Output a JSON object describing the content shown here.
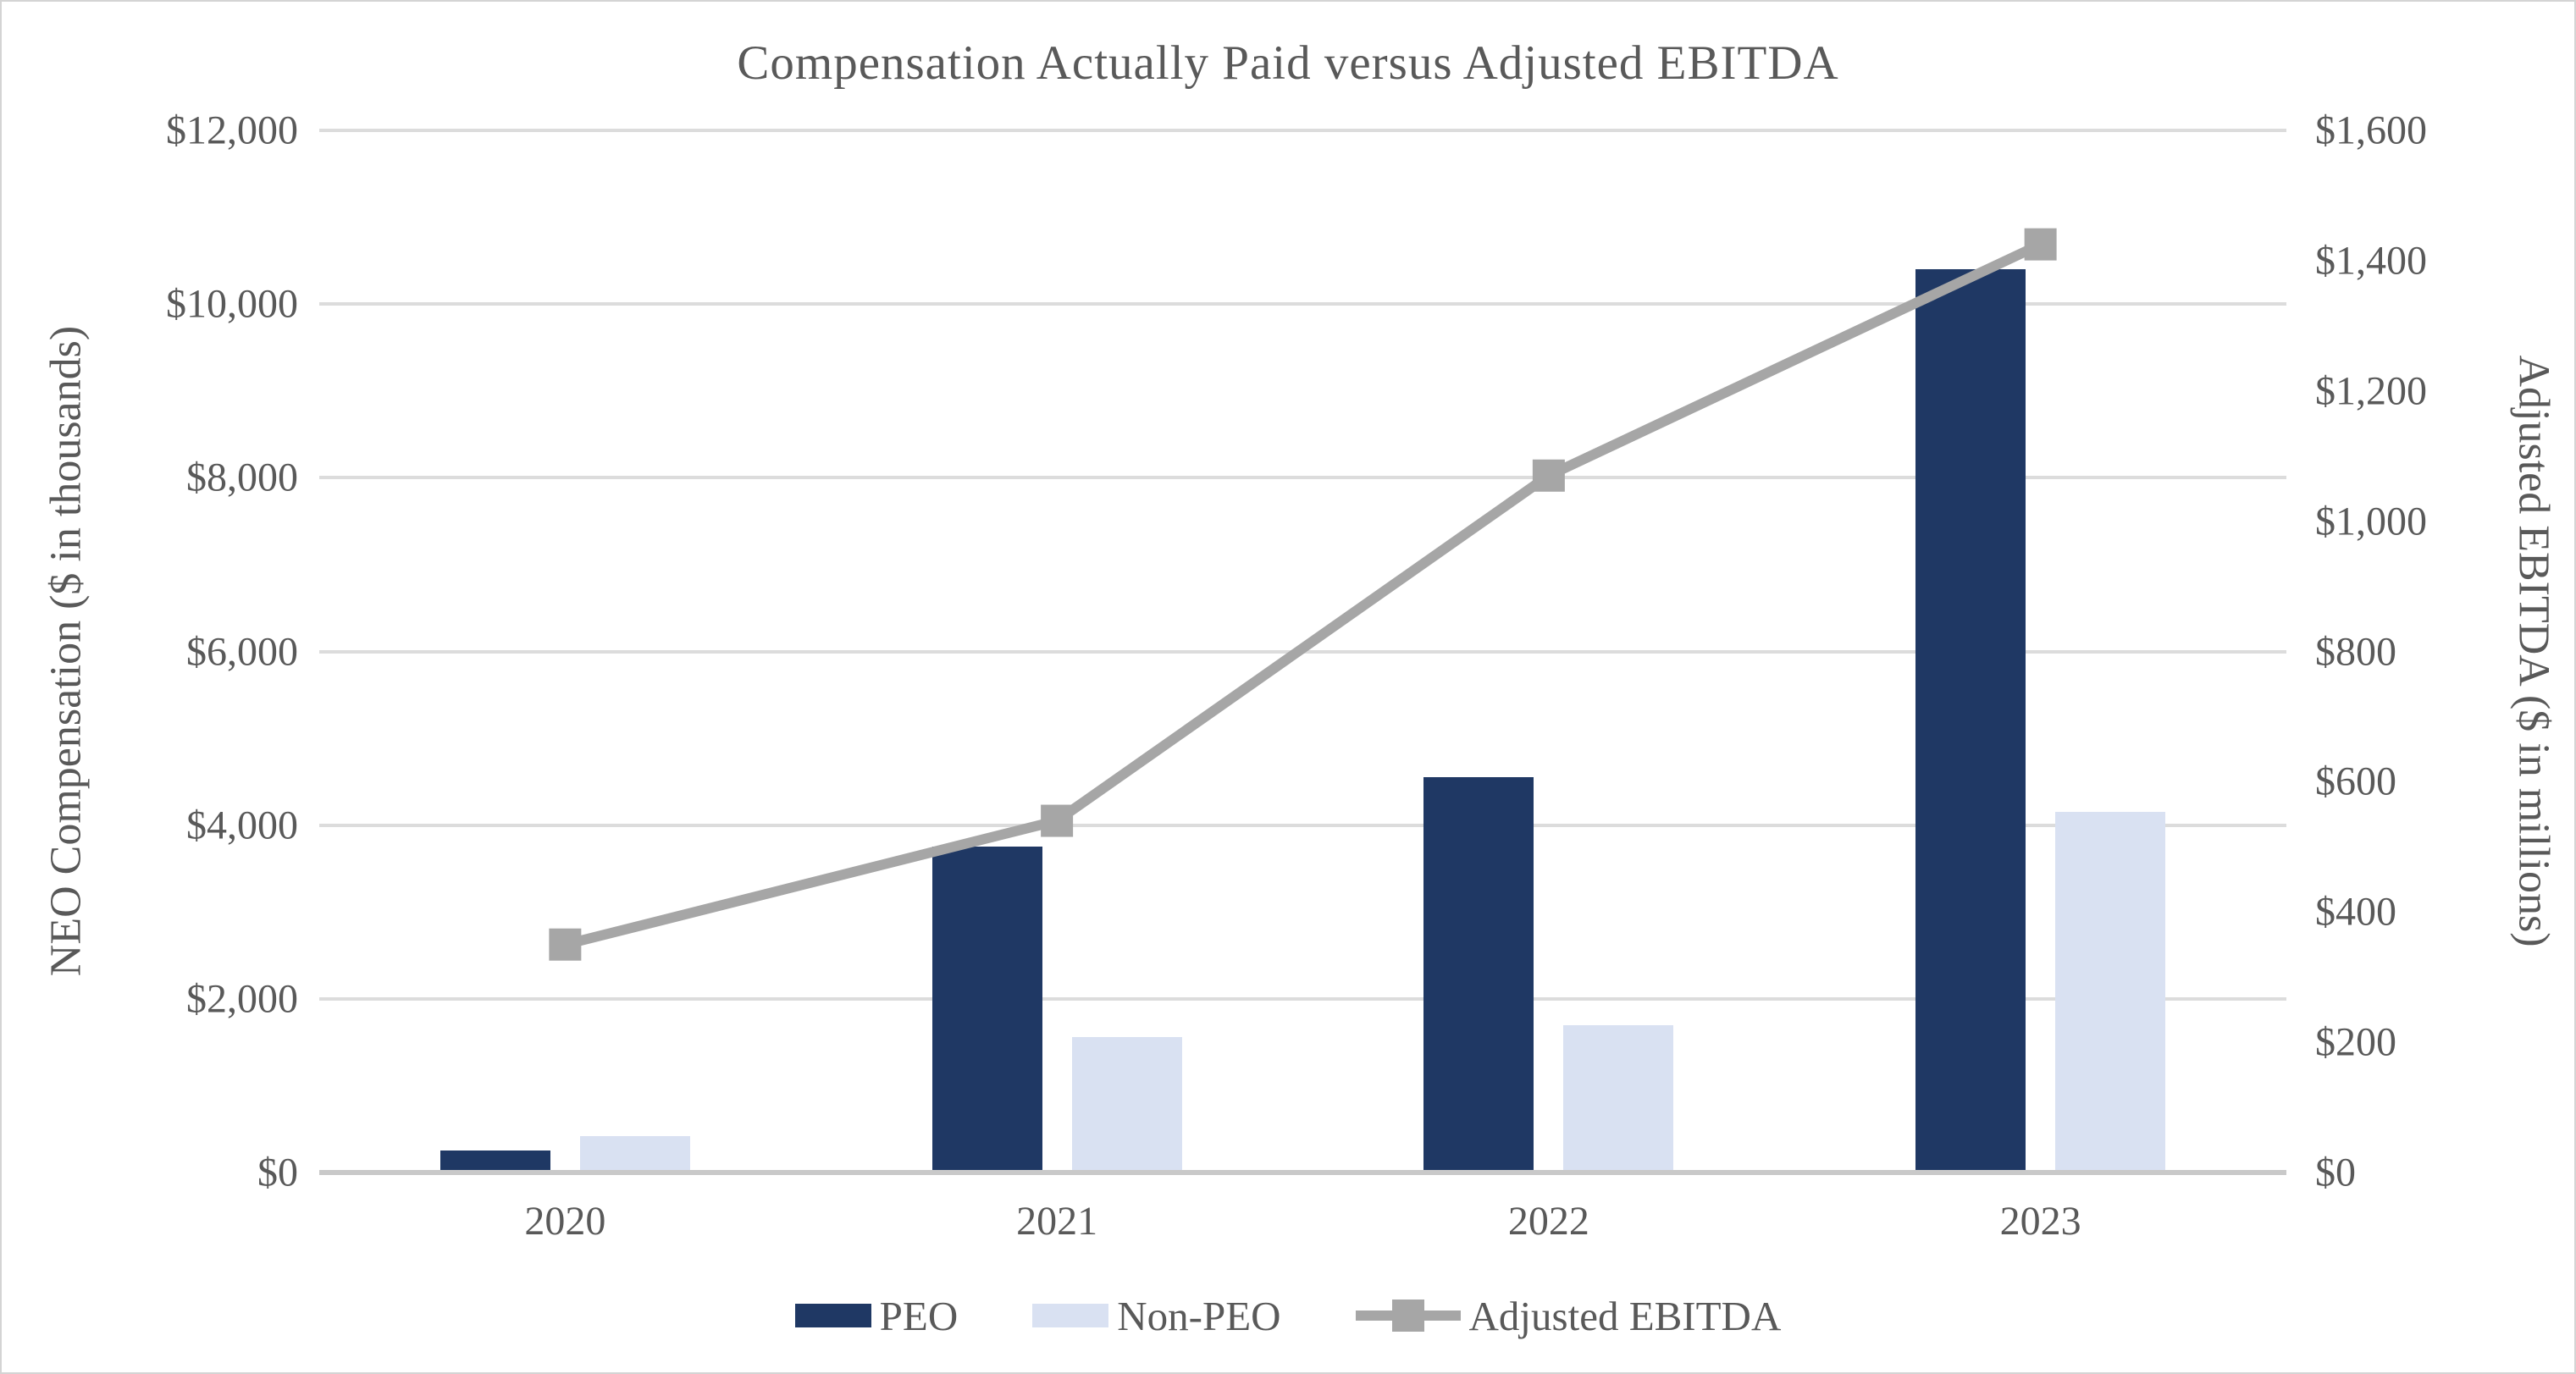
{
  "chart_data": {
    "type": "combo-bar-line",
    "title": "Compensation Actually Paid versus Adjusted EBITDA",
    "categories": [
      "2020",
      "2021",
      "2022",
      "2023"
    ],
    "series": [
      {
        "name": "PEO",
        "type": "bar",
        "axis": "left",
        "color": "#1f3864",
        "values": [
          250,
          3750,
          4550,
          10400
        ]
      },
      {
        "name": "Non-PEO",
        "type": "bar",
        "axis": "left",
        "color": "#d9e1f2",
        "values": [
          420,
          1560,
          1700,
          4150
        ]
      },
      {
        "name": "Adjusted EBITDA",
        "type": "line",
        "axis": "right",
        "color": "#a6a6a6",
        "marker": "square",
        "values": [
          350,
          540,
          1070,
          1425
        ]
      }
    ],
    "left_axis": {
      "title": "NEO Compensation ($ in thousands)",
      "min": 0,
      "max": 12000,
      "tick_step": 2000,
      "tick_labels": [
        "$0",
        "$2,000",
        "$4,000",
        "$6,000",
        "$8,000",
        "$10,000",
        "$12,000"
      ]
    },
    "right_axis": {
      "title": "Adjusted EBITDA ($ in millions)",
      "min": 0,
      "max": 1600,
      "tick_step": 200,
      "tick_labels": [
        "$0",
        "$200",
        "$400",
        "$600",
        "$800",
        "$1,000",
        "$1,200",
        "$1,400",
        "$1,600"
      ]
    },
    "legend": {
      "position": "bottom",
      "items": [
        "PEO",
        "Non-PEO",
        "Adjusted EBITDA"
      ]
    },
    "grid": "horizontal",
    "plot_bg": "#ffffff",
    "text_color": "#595959"
  }
}
